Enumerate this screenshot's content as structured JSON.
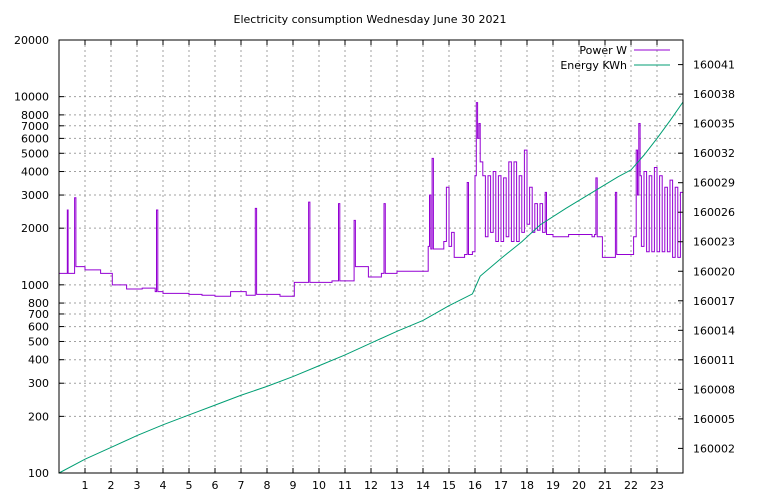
{
  "chart_data": {
    "type": "line",
    "title": "Electricity consumption Wednesday June 30 2021",
    "x_axis": {
      "range": [
        0,
        24
      ],
      "tick_labels": [
        "1",
        "2",
        "3",
        "4",
        "5",
        "6",
        "7",
        "8",
        "9",
        "10",
        "11",
        "12",
        "13",
        "14",
        "15",
        "16",
        "17",
        "18",
        "19",
        "20",
        "21",
        "22",
        "23"
      ]
    },
    "y_axis": {
      "scale": "log",
      "range": [
        100,
        20000
      ],
      "tick_values": [
        100,
        200,
        300,
        400,
        500,
        600,
        700,
        800,
        1000,
        2000,
        3000,
        4000,
        5000,
        6000,
        7000,
        8000,
        10000,
        20000
      ],
      "tick_labels": [
        "100",
        "200",
        "300",
        "400",
        "500",
        "600",
        "700",
        "800",
        "1000",
        "2000",
        "3000",
        "4000",
        "5000",
        "6000",
        "7000",
        "8000",
        "10000",
        "20000"
      ]
    },
    "y2_axis": {
      "scale": "linear",
      "range": [
        159999.5,
        160043.5
      ],
      "tick_values": [
        160002,
        160005,
        160008,
        160011,
        160014,
        160017,
        160020,
        160023,
        160026,
        160029,
        160032,
        160035,
        160038,
        160041
      ],
      "tick_labels": [
        "160002",
        "160005",
        "160008",
        "160011",
        "160014",
        "160017",
        "160020",
        "160023",
        "160026",
        "160029",
        "160032",
        "160035",
        "160038",
        "160041"
      ]
    },
    "grid": true,
    "legend_position": "top-right",
    "series": [
      {
        "name": "Power W",
        "axis": "y",
        "color": "#9400d3",
        "points": [
          [
            0,
            1150
          ],
          [
            0.3,
            1150
          ],
          [
            0.32,
            2500
          ],
          [
            0.35,
            1150
          ],
          [
            0.5,
            1150
          ],
          [
            0.6,
            2900
          ],
          [
            0.65,
            1250
          ],
          [
            0.8,
            1250
          ],
          [
            1.0,
            1200
          ],
          [
            1.5,
            1200
          ],
          [
            1.6,
            1150
          ],
          [
            2.0,
            1150
          ],
          [
            2.05,
            1000
          ],
          [
            2.5,
            1000
          ],
          [
            2.6,
            950
          ],
          [
            3.0,
            950
          ],
          [
            3.2,
            960
          ],
          [
            3.6,
            960
          ],
          [
            3.7,
            920
          ],
          [
            3.75,
            2500
          ],
          [
            3.8,
            920
          ],
          [
            4.0,
            900
          ],
          [
            4.5,
            900
          ],
          [
            5.0,
            890
          ],
          [
            5.5,
            880
          ],
          [
            6.0,
            870
          ],
          [
            6.5,
            870
          ],
          [
            6.6,
            920
          ],
          [
            7.0,
            920
          ],
          [
            7.2,
            880
          ],
          [
            7.5,
            880
          ],
          [
            7.55,
            2550
          ],
          [
            7.6,
            890
          ],
          [
            8.0,
            890
          ],
          [
            8.5,
            870
          ],
          [
            9.0,
            870
          ],
          [
            9.05,
            1030
          ],
          [
            9.5,
            1030
          ],
          [
            9.6,
            2750
          ],
          [
            9.65,
            1030
          ],
          [
            10.0,
            1030
          ],
          [
            10.5,
            1050
          ],
          [
            10.7,
            1050
          ],
          [
            10.75,
            2700
          ],
          [
            10.8,
            1050
          ],
          [
            11.0,
            1050
          ],
          [
            11.3,
            1050
          ],
          [
            11.35,
            2200
          ],
          [
            11.4,
            1250
          ],
          [
            11.5,
            1250
          ],
          [
            11.8,
            1250
          ],
          [
            11.9,
            1100
          ],
          [
            12.2,
            1100
          ],
          [
            12.4,
            1150
          ],
          [
            12.5,
            2700
          ],
          [
            12.55,
            1150
          ],
          [
            13.0,
            1180
          ],
          [
            13.5,
            1180
          ],
          [
            14.0,
            1180
          ],
          [
            14.1,
            1180
          ],
          [
            14.2,
            1600
          ],
          [
            14.25,
            3000
          ],
          [
            14.3,
            1550
          ],
          [
            14.35,
            4700
          ],
          [
            14.4,
            1550
          ],
          [
            14.5,
            1550
          ],
          [
            14.8,
            1700
          ],
          [
            14.9,
            3300
          ],
          [
            15.0,
            1600
          ],
          [
            15.1,
            1900
          ],
          [
            15.2,
            1400
          ],
          [
            15.5,
            1400
          ],
          [
            15.6,
            1450
          ],
          [
            15.7,
            3500
          ],
          [
            15.75,
            1450
          ],
          [
            15.9,
            1500
          ],
          [
            16.0,
            3800
          ],
          [
            16.05,
            9300
          ],
          [
            16.1,
            6000
          ],
          [
            16.15,
            7200
          ],
          [
            16.2,
            4500
          ],
          [
            16.3,
            3800
          ],
          [
            16.4,
            1800
          ],
          [
            16.5,
            3800
          ],
          [
            16.6,
            1900
          ],
          [
            16.7,
            4000
          ],
          [
            16.8,
            1700
          ],
          [
            16.9,
            3800
          ],
          [
            17.0,
            1700
          ],
          [
            17.1,
            3700
          ],
          [
            17.2,
            1800
          ],
          [
            17.3,
            4500
          ],
          [
            17.4,
            1700
          ],
          [
            17.5,
            4500
          ],
          [
            17.6,
            1700
          ],
          [
            17.7,
            3800
          ],
          [
            17.8,
            1900
          ],
          [
            17.9,
            5200
          ],
          [
            18.0,
            2100
          ],
          [
            18.1,
            3300
          ],
          [
            18.2,
            1900
          ],
          [
            18.3,
            2700
          ],
          [
            18.4,
            1950
          ],
          [
            18.5,
            2700
          ],
          [
            18.6,
            1900
          ],
          [
            18.7,
            3100
          ],
          [
            18.75,
            1850
          ],
          [
            19.0,
            1800
          ],
          [
            19.5,
            1800
          ],
          [
            19.6,
            1850
          ],
          [
            20.0,
            1850
          ],
          [
            20.5,
            1800
          ],
          [
            20.6,
            1850
          ],
          [
            20.65,
            3700
          ],
          [
            20.7,
            1800
          ],
          [
            20.9,
            1400
          ],
          [
            21.0,
            1400
          ],
          [
            21.3,
            1400
          ],
          [
            21.4,
            3100
          ],
          [
            21.45,
            1450
          ],
          [
            21.6,
            1450
          ],
          [
            22.0,
            1450
          ],
          [
            22.1,
            1800
          ],
          [
            22.2,
            5200
          ],
          [
            22.25,
            3000
          ],
          [
            22.3,
            7200
          ],
          [
            22.35,
            3800
          ],
          [
            22.4,
            1600
          ],
          [
            22.5,
            4000
          ],
          [
            22.6,
            1500
          ],
          [
            22.7,
            3800
          ],
          [
            22.8,
            1500
          ],
          [
            22.9,
            4200
          ],
          [
            23.0,
            1500
          ],
          [
            23.1,
            3800
          ],
          [
            23.2,
            1500
          ],
          [
            23.3,
            3300
          ],
          [
            23.4,
            1500
          ],
          [
            23.5,
            3600
          ],
          [
            23.6,
            1400
          ],
          [
            23.7,
            3300
          ],
          [
            23.8,
            1400
          ],
          [
            23.9,
            3100
          ],
          [
            24.0,
            1400
          ]
        ]
      },
      {
        "name": "Energy KWh",
        "axis": "y2",
        "color": "#009e73",
        "points": [
          [
            0,
            159999.5
          ],
          [
            1,
            160000.9
          ],
          [
            2,
            160002.1
          ],
          [
            3,
            160003.3
          ],
          [
            4,
            160004.4
          ],
          [
            5,
            160005.4
          ],
          [
            6,
            160006.4
          ],
          [
            7,
            160007.4
          ],
          [
            8,
            160008.3
          ],
          [
            9,
            160009.3
          ],
          [
            10,
            160010.4
          ],
          [
            11,
            160011.5
          ],
          [
            12,
            160012.7
          ],
          [
            13,
            160013.9
          ],
          [
            14,
            160015.0
          ],
          [
            15,
            160016.5
          ],
          [
            15.9,
            160017.7
          ],
          [
            16.2,
            160019.5
          ],
          [
            17,
            160021.3
          ],
          [
            17.8,
            160023.0
          ],
          [
            18.5,
            160024.7
          ],
          [
            19.5,
            160026.4
          ],
          [
            20.5,
            160028.0
          ],
          [
            21.5,
            160029.6
          ],
          [
            22.0,
            160030.3
          ],
          [
            22.5,
            160031.8
          ],
          [
            23.0,
            160033.5
          ],
          [
            23.5,
            160035.3
          ],
          [
            24.0,
            160037.2
          ]
        ]
      }
    ]
  }
}
